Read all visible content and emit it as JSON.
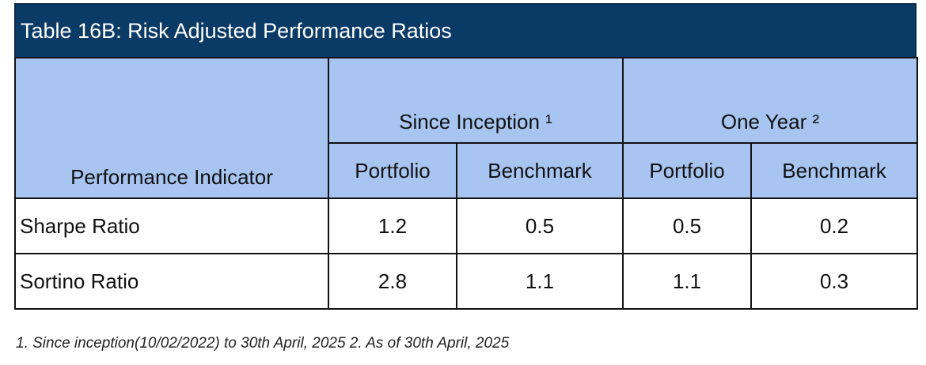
{
  "title": "Table 16B: Risk Adjusted Performance Ratios",
  "headers": {
    "indicator": "Performance Indicator",
    "group1": "Since Inception ¹",
    "group2": "One Year ²",
    "portfolio": "Portfolio",
    "benchmark": "Benchmark"
  },
  "rows": [
    {
      "label": "Sharpe Ratio",
      "values": [
        "1.2",
        "0.5",
        "0.5",
        "0.2"
      ]
    },
    {
      "label": "Sortino Ratio",
      "values": [
        "2.8",
        "1.1",
        "1.1",
        "0.3"
      ]
    }
  ],
  "footnote": "1. Since inception(10/02/2022) to 30th April, 2025  2. As of 30th April, 2025",
  "colors": {
    "title_bg": "#0a3a66",
    "header_bg": "#a8c5f2"
  }
}
